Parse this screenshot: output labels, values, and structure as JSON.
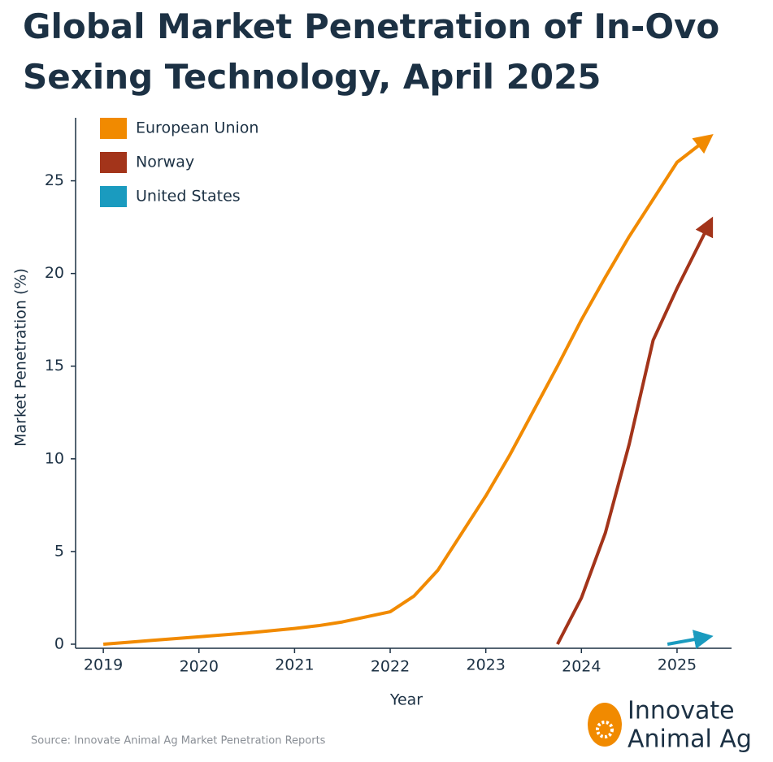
{
  "chart_data": {
    "type": "line",
    "title": "Global Market Penetration of In-Ovo Sexing Technology, April 2025",
    "x_label": "Year",
    "y_label": "Market Penetration (%)",
    "source": "Source: Innovate Animal Ag Market Penetration Reports",
    "logo_text": [
      "Innovate",
      "Animal Ag"
    ],
    "xlim": [
      2018.71,
      2025.57
    ],
    "ylim": [
      -0.22,
      28.4
    ],
    "xticks": [
      2019,
      2020,
      2021,
      2022,
      2023,
      2024,
      2025
    ],
    "yticks": [
      0,
      5,
      10,
      15,
      20,
      25
    ],
    "legend": "upper left",
    "arrows": true,
    "series": [
      {
        "name": "European Union",
        "color": "#f18a00",
        "x": [
          2019,
          2019.25,
          2019.5,
          2020,
          2020.5,
          2021,
          2021.25,
          2021.5,
          2022,
          2022.25,
          2022.5,
          2022.75,
          2023,
          2023.25,
          2023.5,
          2023.75,
          2024,
          2024.25,
          2024.5,
          2024.75,
          2025,
          2025.3
        ],
        "values": [
          0,
          0.1,
          0.2,
          0.4,
          0.6,
          0.85,
          1.0,
          1.2,
          1.75,
          2.6,
          4.0,
          6.0,
          8.0,
          10.2,
          12.6,
          15.0,
          17.5,
          19.8,
          22.0,
          24.0,
          26.0,
          27.2
        ]
      },
      {
        "name": "Norway",
        "color": "#a3341a",
        "x": [
          2023.75,
          2024,
          2024.25,
          2024.5,
          2024.75,
          2025,
          2025.33
        ],
        "values": [
          0,
          2.5,
          6.0,
          10.8,
          16.4,
          19.2,
          22.6
        ]
      },
      {
        "name": "United States",
        "color": "#1a9bbf",
        "x": [
          2024.9,
          2025.28
        ],
        "values": [
          0,
          0.35
        ]
      }
    ]
  }
}
